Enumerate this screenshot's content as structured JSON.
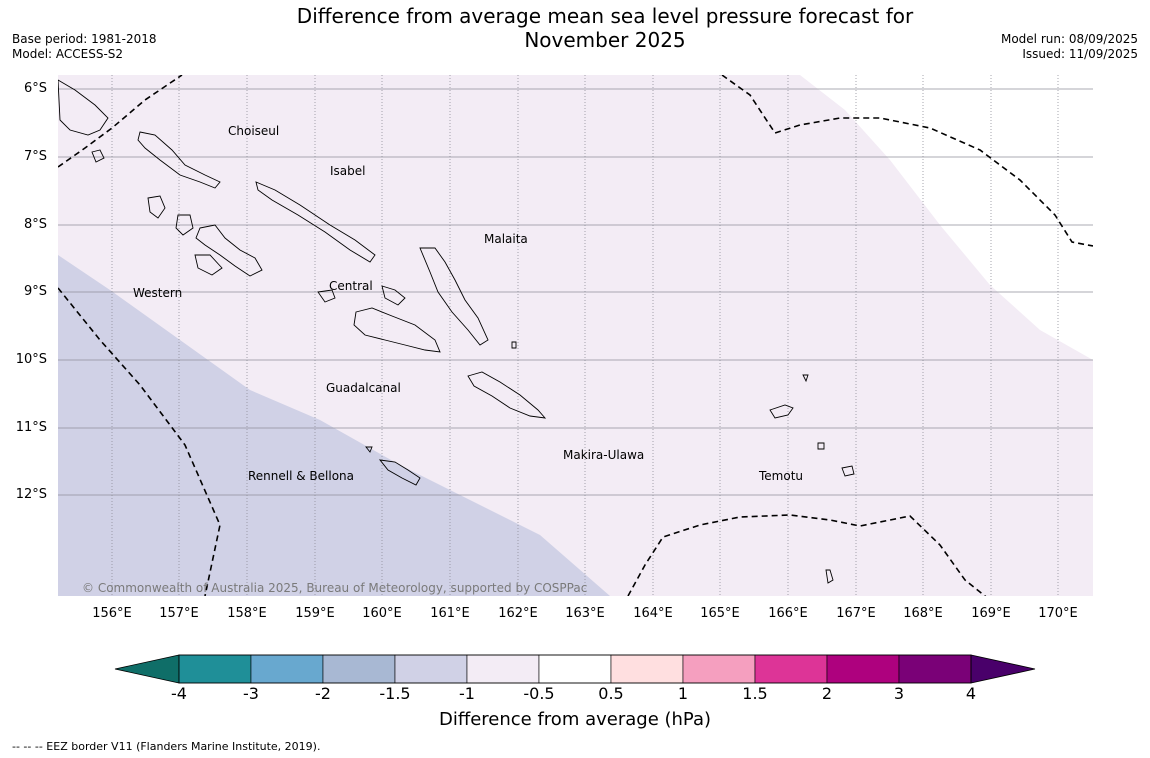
{
  "title": "Difference from average mean sea level pressure forecast for November 2025",
  "meta_left": {
    "base_period": "Base period: 1981-2018",
    "model": "Model: ACCESS-S2"
  },
  "meta_right": {
    "model_run": "Model run: 08/09/2025",
    "issued": "Issued: 11/09/2025"
  },
  "map": {
    "lat_labels": [
      "6°S",
      "7°S",
      "8°S",
      "9°S",
      "10°S",
      "11°S",
      "12°S"
    ],
    "lon_labels": [
      "156°E",
      "157°E",
      "158°E",
      "159°E",
      "160°E",
      "161°E",
      "162°E",
      "163°E",
      "164°E",
      "165°E",
      "166°E",
      "167°E",
      "168°E",
      "169°E",
      "170°E"
    ],
    "places": [
      {
        "name": "Choiseul"
      },
      {
        "name": "Isabel"
      },
      {
        "name": "Malaita"
      },
      {
        "name": "Western"
      },
      {
        "name": "Central"
      },
      {
        "name": "Guadalcanal"
      },
      {
        "name": "Makira-Ulawa"
      },
      {
        "name": "Temotu"
      },
      {
        "name": "Rennell & Bellona"
      }
    ],
    "copyright": "© Commonwealth of Australia 2025, Bureau of Meteorology, supported by COSPPac"
  },
  "colorbar": {
    "label": "Difference from average (hPa)",
    "ticks": [
      "-4",
      "-3",
      "-2",
      "-1.5",
      "-1",
      "-0.5",
      "0.5",
      "1",
      "1.5",
      "2",
      "3",
      "4"
    ],
    "colors": [
      "#1f8f98",
      "#68a8cf",
      "#a8b8d3",
      "#d0d1e6",
      "#f3ecf5",
      "#ffffff",
      "#ffdfe0",
      "#f59fbf",
      "#dd3497",
      "#ae017e",
      "#7a0177"
    ],
    "under_color": "#0f6e68",
    "over_color": "#49006a"
  },
  "footnote": "--  --  -- EEZ border V11 (Flanders Marine Institute, 2019)."
}
